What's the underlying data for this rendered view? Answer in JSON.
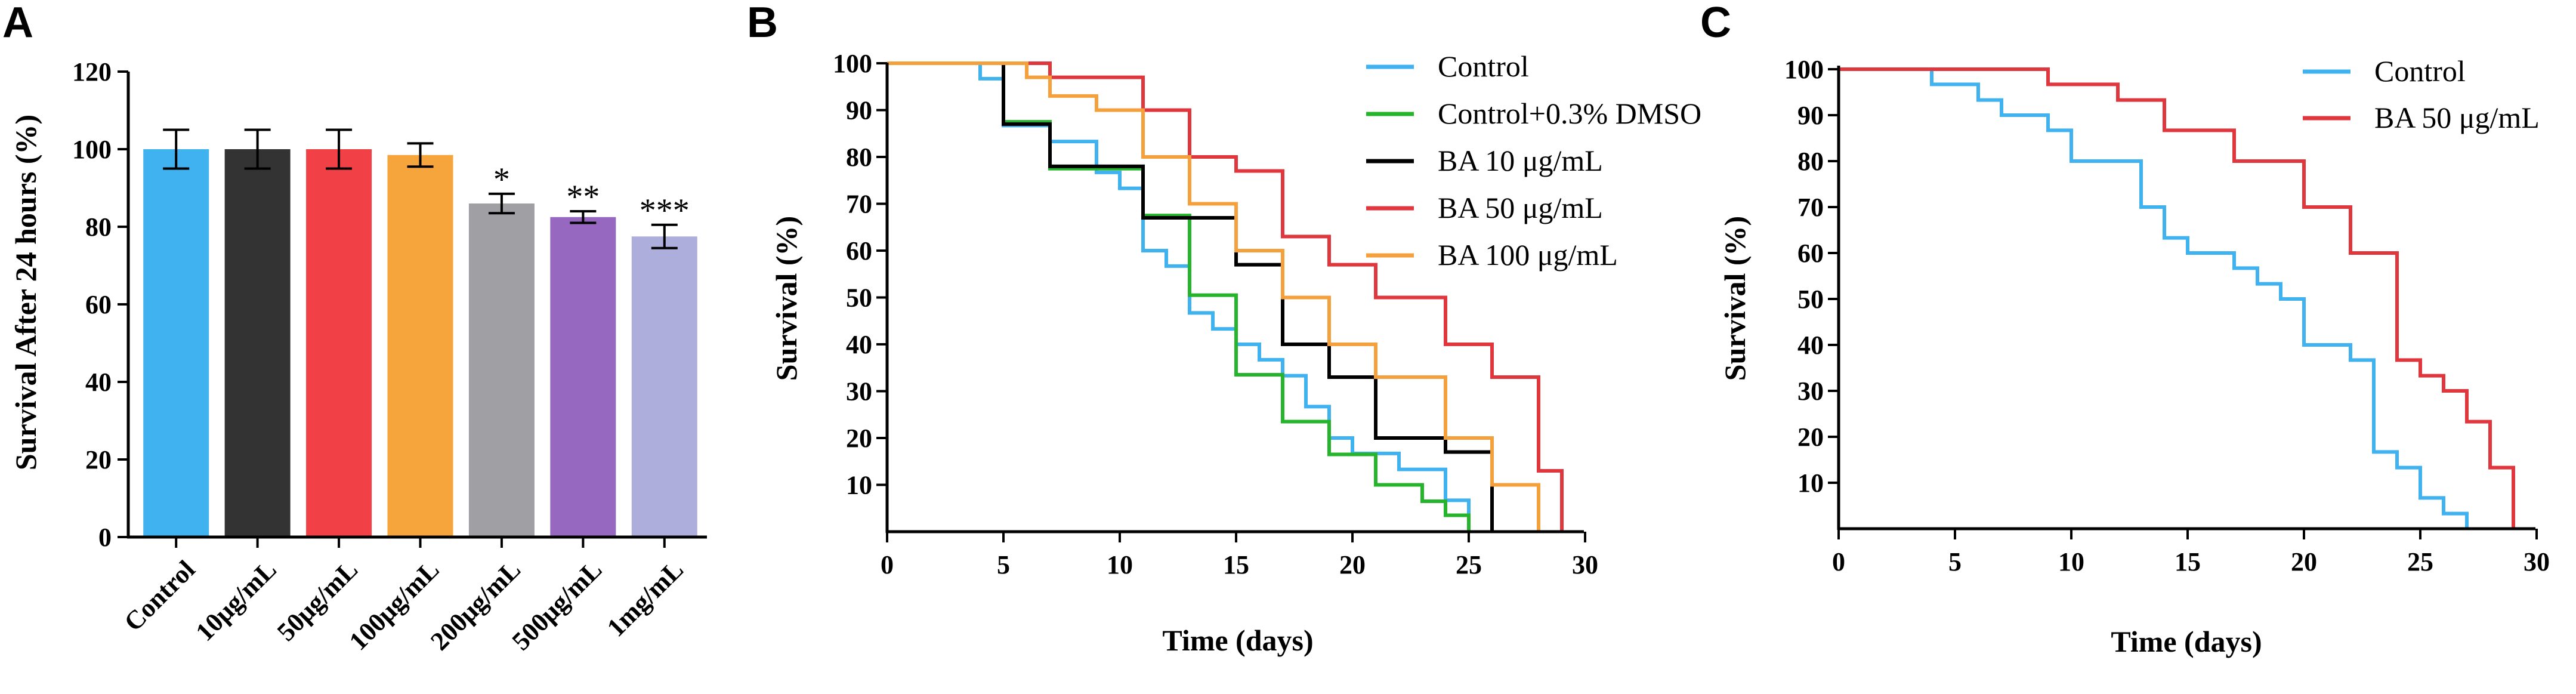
{
  "figure": {
    "panels": [
      "A",
      "B",
      "C"
    ]
  },
  "chart_data": [
    {
      "panel": "A",
      "type": "bar",
      "title": "",
      "xlabel": "",
      "ylabel": "Survival After 24 hours (%)",
      "ylim": [
        0,
        120
      ],
      "yticks": [
        "0",
        "20",
        "40",
        "60",
        "80",
        "100",
        "120"
      ],
      "categories": [
        "Control",
        "10μg/mL",
        "50μg/mL",
        "100μg/mL",
        "200μg/mL",
        "500μg/mL",
        "1mg/mL"
      ],
      "values": [
        100,
        100,
        100,
        98.5,
        86,
        82.5,
        77.5
      ],
      "errors": [
        5,
        5,
        5,
        3,
        2.5,
        1.5,
        3
      ],
      "colors": [
        "#41b2f0",
        "#333333",
        "#f24047",
        "#f6a43c",
        "#a0a0a4",
        "#9768c0",
        "#adaedb"
      ],
      "significance": [
        "",
        "",
        "",
        "",
        "*",
        "**",
        "***"
      ]
    },
    {
      "panel": "B",
      "type": "line",
      "title": "",
      "xlabel": "Time (days)",
      "ylabel": "Survival (%)",
      "xlim": [
        0,
        30
      ],
      "ylim": [
        0,
        100
      ],
      "xticks": [
        "0",
        "5",
        "10",
        "15",
        "20",
        "25",
        "30"
      ],
      "yticks": [
        "10",
        "20",
        "30",
        "40",
        "50",
        "60",
        "70",
        "80",
        "90",
        "100"
      ],
      "legend_position": "top-right",
      "series": [
        {
          "name": "Control",
          "color": "#41b2f0",
          "steps": [
            [
              0,
              100
            ],
            [
              4,
              100
            ],
            [
              4,
              96.7
            ],
            [
              5,
              96.7
            ],
            [
              5,
              86.7
            ],
            [
              7,
              86.7
            ],
            [
              7,
              83.3
            ],
            [
              9,
              83.3
            ],
            [
              9,
              76.7
            ],
            [
              10,
              76.7
            ],
            [
              10,
              73.3
            ],
            [
              11,
              73.3
            ],
            [
              11,
              60
            ],
            [
              12,
              60
            ],
            [
              12,
              56.7
            ],
            [
              13,
              56.7
            ],
            [
              13,
              46.7
            ],
            [
              14,
              46.7
            ],
            [
              14,
              43.3
            ],
            [
              15,
              43.3
            ],
            [
              15,
              40
            ],
            [
              16,
              40
            ],
            [
              16,
              36.7
            ],
            [
              17,
              36.7
            ],
            [
              17,
              33.3
            ],
            [
              18,
              33.3
            ],
            [
              18,
              26.7
            ],
            [
              19,
              26.7
            ],
            [
              19,
              20
            ],
            [
              20,
              20
            ],
            [
              20,
              16.7
            ],
            [
              22,
              16.7
            ],
            [
              22,
              13.3
            ],
            [
              24,
              13.3
            ],
            [
              24,
              6.7
            ],
            [
              25,
              6.7
            ],
            [
              25,
              0
            ]
          ]
        },
        {
          "name": "Control+0.3% DMSO",
          "color": "#27b42d",
          "steps": [
            [
              0,
              100
            ],
            [
              5,
              100
            ],
            [
              5,
              87.5
            ],
            [
              7,
              87.5
            ],
            [
              7,
              77.5
            ],
            [
              11,
              77.5
            ],
            [
              11,
              67.5
            ],
            [
              13,
              67.5
            ],
            [
              13,
              50.5
            ],
            [
              15,
              50.5
            ],
            [
              15,
              33.5
            ],
            [
              17,
              33.5
            ],
            [
              17,
              23.5
            ],
            [
              19,
              23.5
            ],
            [
              19,
              16.5
            ],
            [
              21,
              16.5
            ],
            [
              21,
              10
            ],
            [
              23,
              10
            ],
            [
              23,
              6.5
            ],
            [
              24,
              6.5
            ],
            [
              24,
              3.5
            ],
            [
              25,
              3.5
            ],
            [
              25,
              0
            ]
          ]
        },
        {
          "name": "BA 10 μg/mL",
          "color": "#000000",
          "steps": [
            [
              0,
              100
            ],
            [
              5,
              100
            ],
            [
              5,
              87
            ],
            [
              7,
              87
            ],
            [
              7,
              78
            ],
            [
              11,
              78
            ],
            [
              11,
              67
            ],
            [
              15,
              67
            ],
            [
              15,
              57
            ],
            [
              17,
              57
            ],
            [
              17,
              40
            ],
            [
              19,
              40
            ],
            [
              19,
              33
            ],
            [
              21,
              33
            ],
            [
              21,
              20
            ],
            [
              24,
              20
            ],
            [
              24,
              17
            ],
            [
              26,
              17
            ],
            [
              26,
              0
            ]
          ]
        },
        {
          "name": "BA 50 μg/mL",
          "color": "#e0363d",
          "steps": [
            [
              0,
              100
            ],
            [
              7,
              100
            ],
            [
              7,
              97
            ],
            [
              11,
              97
            ],
            [
              11,
              90
            ],
            [
              13,
              90
            ],
            [
              13,
              80
            ],
            [
              15,
              80
            ],
            [
              15,
              77
            ],
            [
              17,
              77
            ],
            [
              17,
              63
            ],
            [
              19,
              63
            ],
            [
              19,
              57
            ],
            [
              21,
              57
            ],
            [
              21,
              50
            ],
            [
              24,
              50
            ],
            [
              24,
              40
            ],
            [
              26,
              40
            ],
            [
              26,
              33
            ],
            [
              28,
              33
            ],
            [
              28,
              13
            ],
            [
              29,
              13
            ],
            [
              29,
              0
            ]
          ]
        },
        {
          "name": "BA 100 μg/mL",
          "color": "#f4a03d",
          "steps": [
            [
              0,
              100
            ],
            [
              6,
              100
            ],
            [
              6,
              97
            ],
            [
              7,
              97
            ],
            [
              7,
              93
            ],
            [
              9,
              93
            ],
            [
              9,
              90
            ],
            [
              11,
              90
            ],
            [
              11,
              80
            ],
            [
              13,
              80
            ],
            [
              13,
              70
            ],
            [
              15,
              70
            ],
            [
              15,
              60
            ],
            [
              17,
              60
            ],
            [
              17,
              50
            ],
            [
              19,
              50
            ],
            [
              19,
              40
            ],
            [
              21,
              40
            ],
            [
              21,
              33
            ],
            [
              24,
              33
            ],
            [
              24,
              20
            ],
            [
              26,
              20
            ],
            [
              26,
              10
            ],
            [
              28,
              10
            ],
            [
              28,
              0
            ]
          ]
        }
      ]
    },
    {
      "panel": "C",
      "type": "line",
      "title": "",
      "xlabel": "Time (days)",
      "ylabel": "Survival (%)",
      "xlim": [
        0,
        30
      ],
      "ylim": [
        0,
        100
      ],
      "xticks": [
        "0",
        "5",
        "10",
        "15",
        "20",
        "25",
        "30"
      ],
      "yticks": [
        "10",
        "20",
        "30",
        "40",
        "50",
        "60",
        "70",
        "80",
        "90",
        "100"
      ],
      "legend_position": "top-right",
      "series": [
        {
          "name": "Control",
          "color": "#41b2f0",
          "steps": [
            [
              0,
              100
            ],
            [
              4,
              100
            ],
            [
              4,
              96.7
            ],
            [
              6,
              96.7
            ],
            [
              6,
              93.3
            ],
            [
              7,
              93.3
            ],
            [
              7,
              90
            ],
            [
              9,
              90
            ],
            [
              9,
              86.7
            ],
            [
              10,
              86.7
            ],
            [
              10,
              80
            ],
            [
              13,
              80
            ],
            [
              13,
              70
            ],
            [
              14,
              70
            ],
            [
              14,
              63.3
            ],
            [
              15,
              63.3
            ],
            [
              15,
              60
            ],
            [
              17,
              60
            ],
            [
              17,
              56.7
            ],
            [
              18,
              56.7
            ],
            [
              18,
              53.3
            ],
            [
              19,
              53.3
            ],
            [
              19,
              50
            ],
            [
              20,
              50
            ],
            [
              20,
              40
            ],
            [
              22,
              40
            ],
            [
              22,
              36.7
            ],
            [
              23,
              36.7
            ],
            [
              23,
              16.7
            ],
            [
              24,
              16.7
            ],
            [
              24,
              13.3
            ],
            [
              25,
              13.3
            ],
            [
              25,
              6.7
            ],
            [
              26,
              6.7
            ],
            [
              26,
              3.3
            ],
            [
              27,
              3.3
            ],
            [
              27,
              0
            ]
          ]
        },
        {
          "name": "BA 50 μg/mL",
          "color": "#e0363d",
          "steps": [
            [
              0,
              100
            ],
            [
              9,
              100
            ],
            [
              9,
              96.7
            ],
            [
              12,
              96.7
            ],
            [
              12,
              93.3
            ],
            [
              14,
              93.3
            ],
            [
              14,
              86.7
            ],
            [
              17,
              86.7
            ],
            [
              17,
              80
            ],
            [
              20,
              80
            ],
            [
              20,
              70
            ],
            [
              22,
              70
            ],
            [
              22,
              60
            ],
            [
              24,
              60
            ],
            [
              24,
              36.7
            ],
            [
              25,
              36.7
            ],
            [
              25,
              33.3
            ],
            [
              26,
              33.3
            ],
            [
              26,
              30
            ],
            [
              27,
              30
            ],
            [
              27,
              23.3
            ],
            [
              28,
              23.3
            ],
            [
              28,
              13.3
            ],
            [
              29,
              13.3
            ],
            [
              29,
              0
            ]
          ]
        }
      ]
    }
  ]
}
